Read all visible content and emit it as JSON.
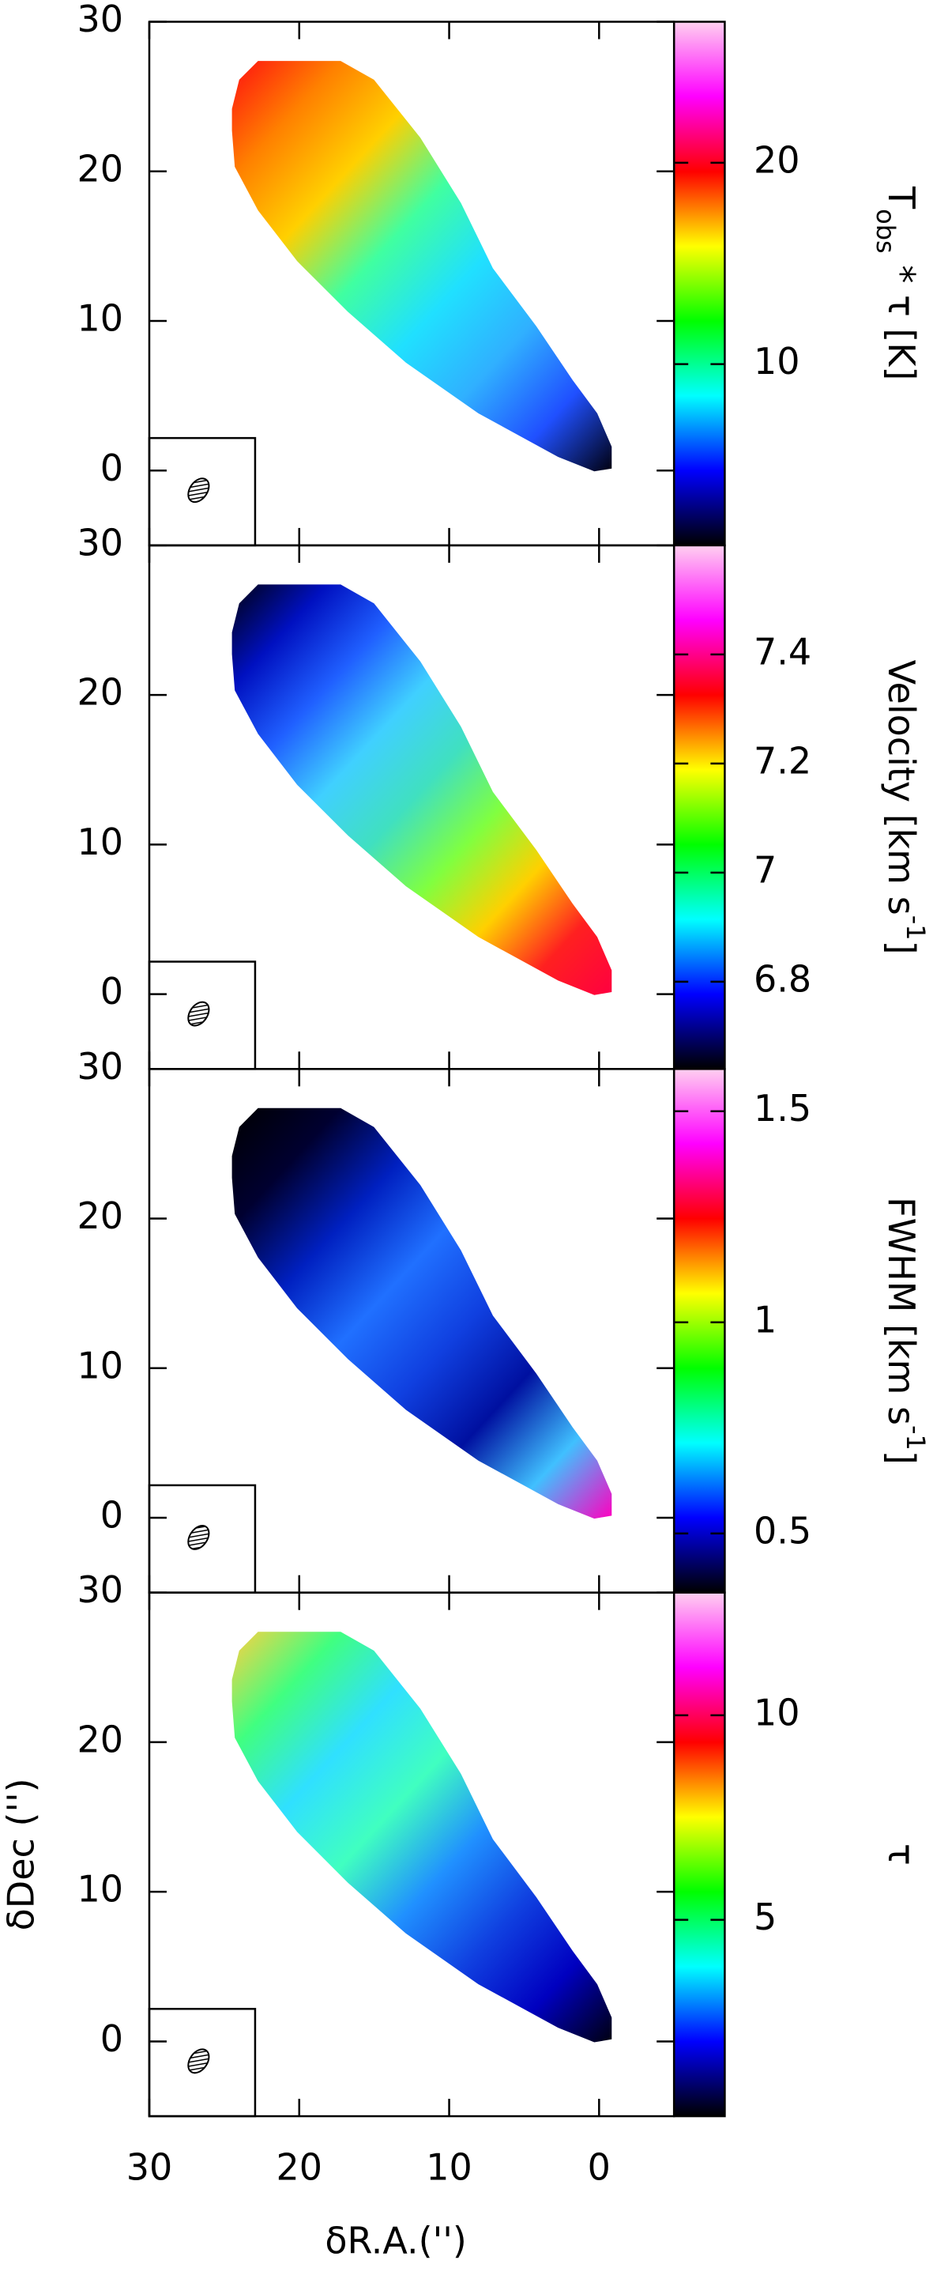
{
  "chart_data": [
    {
      "type": "heatmap",
      "colorbar_label": [
        {
          "text": "T"
        },
        {
          "text": "obs",
          "sub": true
        },
        {
          "text": " * τ [K]"
        }
      ],
      "clim": [
        1,
        27
      ],
      "cticks": [
        10,
        20
      ],
      "ylim": [
        -5,
        30
      ],
      "yticks": [
        0,
        10,
        20,
        30
      ],
      "xlim": [
        30,
        -5
      ],
      "xticks": [
        30,
        20,
        10,
        0
      ],
      "colormap": [
        "#000000",
        "#0000ff",
        "#00ffff",
        "#00ff00",
        "#ffff00",
        "#ff0000",
        "#ff00ff",
        "#ffd0f0"
      ],
      "map_colors": [
        "#ff1010",
        "#ff8000",
        "#ffd000",
        "#40ffa0",
        "#20e0ff",
        "#30b0ff",
        "#2050ff",
        "#000010"
      ]
    },
    {
      "type": "heatmap",
      "colorbar_label": [
        {
          "text": "Velocity [km s"
        },
        {
          "text": "-1",
          "sup": true
        },
        {
          "text": "]"
        }
      ],
      "clim": [
        6.64,
        7.6
      ],
      "cticks": [
        6.8,
        7,
        7.2,
        7.4
      ],
      "ylim": [
        -5,
        30
      ],
      "yticks": [
        0,
        10,
        20,
        30
      ],
      "xlim": [
        30,
        -5
      ],
      "xticks": [
        30,
        20,
        10,
        0
      ],
      "colormap": [
        "#000000",
        "#0000ff",
        "#00ffff",
        "#00ff00",
        "#ffff00",
        "#ff0000",
        "#ff00ff",
        "#ffd0f0"
      ],
      "map_colors": [
        "#000010",
        "#0010c0",
        "#2060ff",
        "#40d0ff",
        "#40e0c0",
        "#80ff40",
        "#ffd000",
        "#ff2020",
        "#ff0040"
      ]
    },
    {
      "type": "heatmap",
      "colorbar_label": [
        {
          "text": "FWHM [km s"
        },
        {
          "text": "-1",
          "sup": true
        },
        {
          "text": "]"
        }
      ],
      "clim": [
        0.36,
        1.6
      ],
      "cticks": [
        0.5,
        1,
        1.5
      ],
      "ylim": [
        -5,
        30
      ],
      "yticks": [
        0,
        10,
        20,
        30
      ],
      "xlim": [
        30,
        -5
      ],
      "xticks": [
        30,
        20,
        10,
        0
      ],
      "colormap": [
        "#000000",
        "#0000ff",
        "#00ffff",
        "#00ff00",
        "#ffff00",
        "#ff0000",
        "#ff00ff",
        "#ffd0f0"
      ],
      "map_colors": [
        "#000000",
        "#000030",
        "#0020c0",
        "#2070ff",
        "#1040e0",
        "#0010a0",
        "#40c0ff",
        "#ff00c0"
      ]
    },
    {
      "type": "heatmap",
      "colorbar_label": [
        {
          "text": "τ"
        }
      ],
      "clim": [
        0.2,
        13
      ],
      "cticks": [
        5,
        10
      ],
      "ylim": [
        -5,
        30
      ],
      "yticks": [
        0,
        10,
        20,
        30
      ],
      "xlim": [
        30,
        -5
      ],
      "xticks": [
        30,
        20,
        10,
        0
      ],
      "xlabel": "δR.A.('')",
      "ylabel": "δDec ('')",
      "colormap": [
        "#000000",
        "#0000ff",
        "#00ffff",
        "#00ff00",
        "#ffff00",
        "#ff0000",
        "#ff00ff",
        "#ffd0f0"
      ],
      "map_colors": [
        "#ffd040",
        "#40ff80",
        "#30e0ff",
        "#40ffc0",
        "#2090ff",
        "#1040e0",
        "#0000c0",
        "#000010"
      ]
    }
  ]
}
